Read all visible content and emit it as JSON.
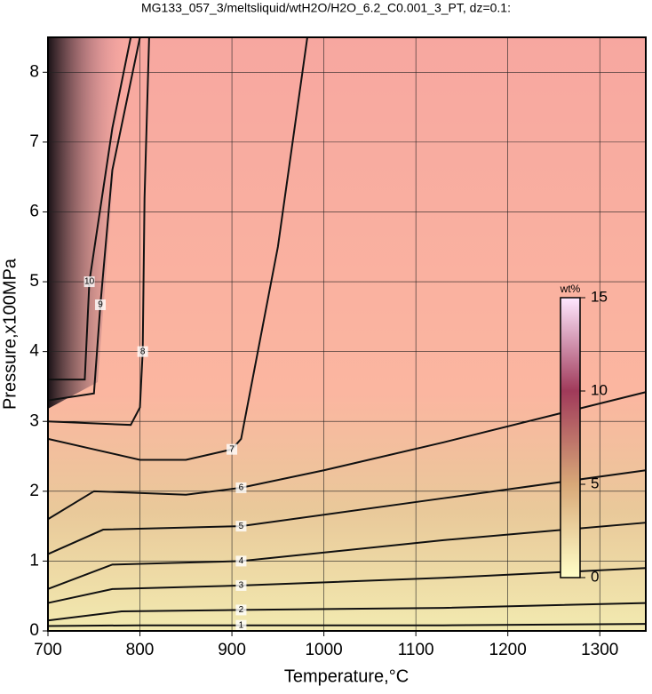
{
  "chart_data": {
    "type": "contour",
    "title": "MG133_057_3/meltsliquid/wtH2O/H2O_6.2_C0.001_3_PT, dz=0.1:",
    "x_label": "Temperature,°C",
    "y_label": "Pressure,x100MPa",
    "xlim": [
      700,
      1350
    ],
    "ylim": [
      0,
      8.5
    ],
    "xticks": [
      700,
      800,
      900,
      1000,
      1100,
      1200,
      1300
    ],
    "yticks": [
      0,
      1,
      2,
      3,
      4,
      5,
      6,
      7,
      8
    ],
    "grid": true,
    "colorbar_label": "wt%",
    "clim": [
      0,
      15
    ],
    "cticks": [
      0,
      5,
      10,
      15
    ],
    "colormap": [
      "#ffffc8",
      "#d8a878",
      "#a03a5a",
      "#ffe8ff"
    ],
    "contours": [
      {
        "level": 1,
        "x": [
          700,
          800,
          910,
          1130,
          1350
        ],
        "y": [
          0.07,
          0.08,
          0.08,
          0.08,
          0.1
        ]
      },
      {
        "level": 2,
        "x": [
          700,
          780,
          910,
          1130,
          1350
        ],
        "y": [
          0.15,
          0.28,
          0.3,
          0.33,
          0.4
        ]
      },
      {
        "level": 3,
        "x": [
          700,
          770,
          910,
          1130,
          1350
        ],
        "y": [
          0.4,
          0.6,
          0.65,
          0.76,
          0.9
        ]
      },
      {
        "level": 4,
        "x": [
          700,
          770,
          910,
          1130,
          1350
        ],
        "y": [
          0.6,
          0.95,
          1.0,
          1.3,
          1.55
        ]
      },
      {
        "level": 5,
        "x": [
          700,
          760,
          910,
          1130,
          1350
        ],
        "y": [
          1.1,
          1.45,
          1.5,
          1.9,
          2.3
        ]
      },
      {
        "level": 6,
        "x": [
          700,
          750,
          850,
          910,
          1000,
          1130,
          1350
        ],
        "y": [
          1.6,
          2.0,
          1.95,
          2.05,
          2.3,
          2.7,
          3.42
        ]
      },
      {
        "level": 7,
        "x": [
          700,
          750,
          800,
          850,
          900,
          910,
          950,
          982
        ],
        "y": [
          2.75,
          2.6,
          2.45,
          2.45,
          2.6,
          2.75,
          5.5,
          8.5
        ]
      },
      {
        "level": 8,
        "x": [
          700,
          790,
          800,
          803,
          805,
          810
        ],
        "y": [
          3.0,
          2.95,
          3.2,
          4.0,
          6.2,
          8.5
        ]
      },
      {
        "level": 9,
        "x": [
          700,
          750,
          757,
          770,
          800
        ],
        "y": [
          3.3,
          3.4,
          4.67,
          6.6,
          8.5
        ]
      },
      {
        "level": 10,
        "x": [
          700,
          740,
          745,
          770,
          790
        ],
        "y": [
          3.6,
          3.6,
          5.0,
          7.2,
          8.5
        ]
      }
    ]
  }
}
